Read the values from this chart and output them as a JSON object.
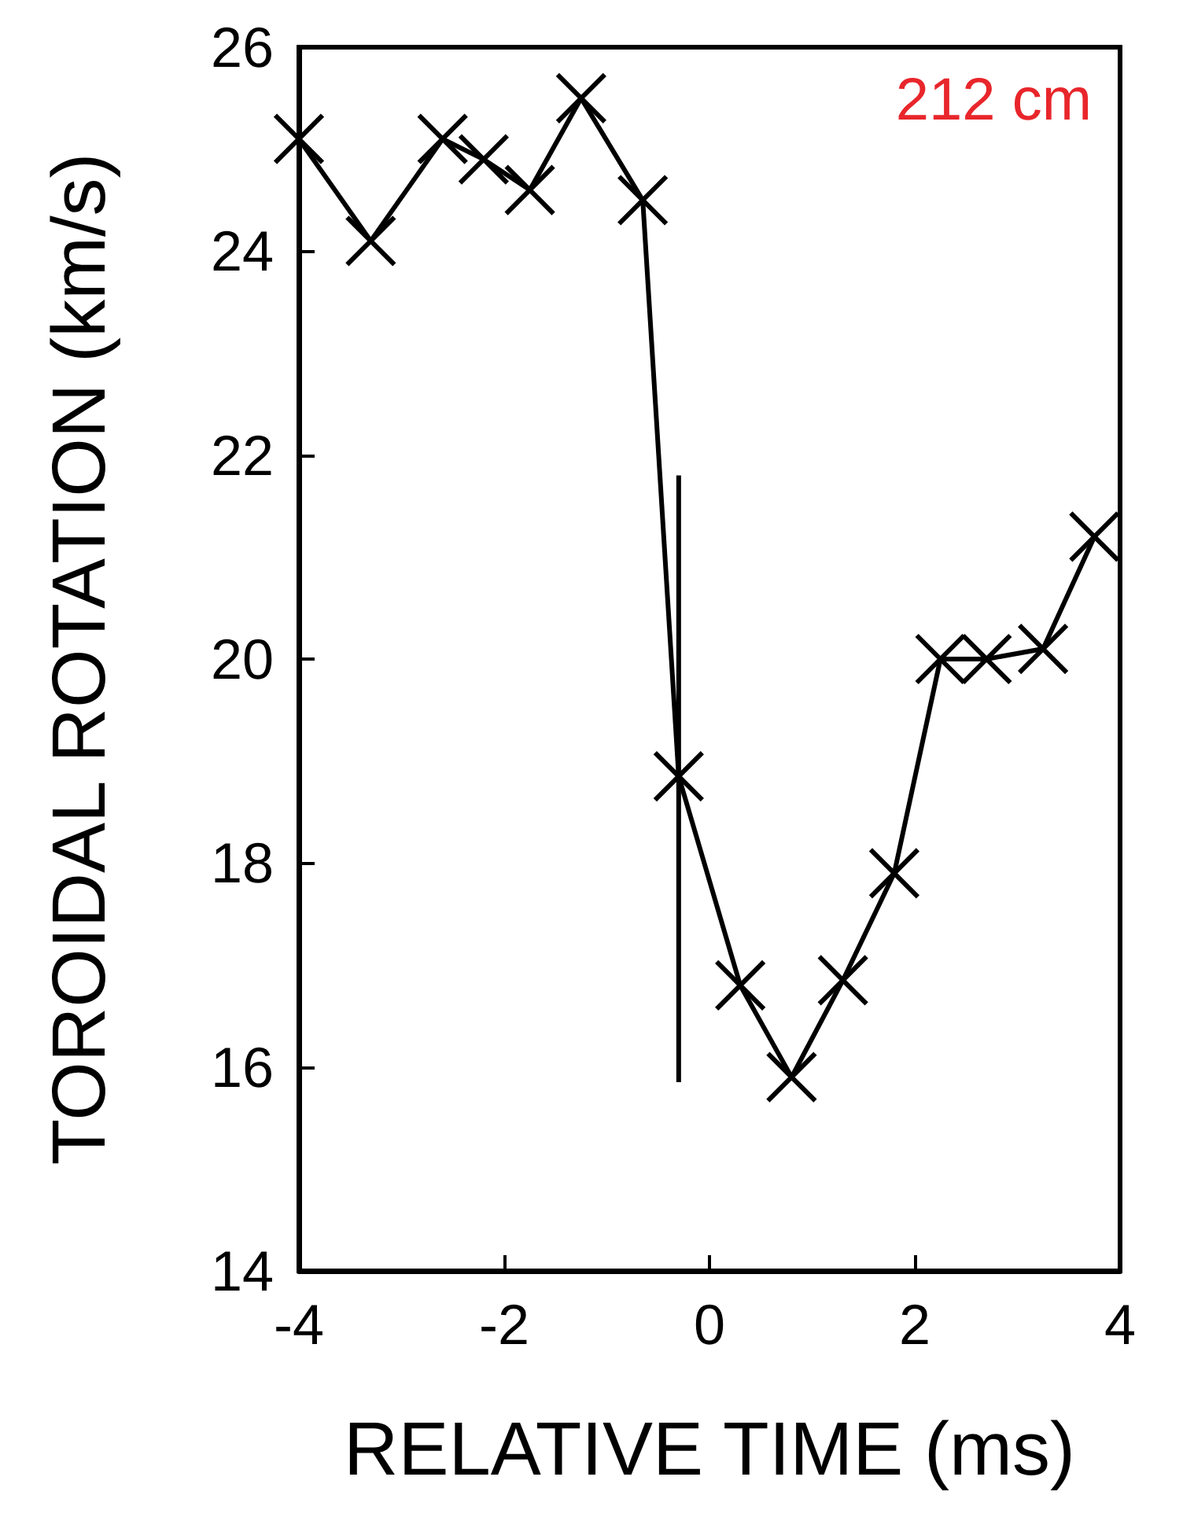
{
  "chart_data": {
    "type": "line",
    "xlabel": "RELATIVE TIME (ms)",
    "ylabel": "TOROIDAL ROTATION (km/s)",
    "annotations": [
      "212 cm"
    ],
    "x": [
      -4.0,
      -3.3,
      -2.6,
      -2.2,
      -1.75,
      -1.25,
      -0.65,
      -0.3,
      0.3,
      0.8,
      1.3,
      1.8,
      2.25,
      2.7,
      3.25,
      3.75
    ],
    "series": [
      {
        "color": "#000000",
        "values": [
          25.1,
          24.1,
          25.1,
          24.9,
          24.6,
          25.5,
          24.5,
          18.85,
          16.8,
          15.9,
          16.85,
          17.9,
          20.0,
          20.0,
          20.1,
          21.2
        ],
        "errors": [
          null,
          null,
          null,
          null,
          null,
          null,
          null,
          [
            15.85,
            21.8
          ],
          null,
          null,
          null,
          null,
          null,
          null,
          null,
          null
        ]
      }
    ],
    "xlim": [
      -4,
      4
    ],
    "xticks": [
      -4,
      -2,
      0,
      2,
      4
    ],
    "ylim": [
      14,
      26
    ],
    "yticks": [
      14,
      16,
      18,
      20,
      22,
      24,
      26
    ],
    "marker": "cross",
    "line_style": "solid",
    "grid": false
  }
}
